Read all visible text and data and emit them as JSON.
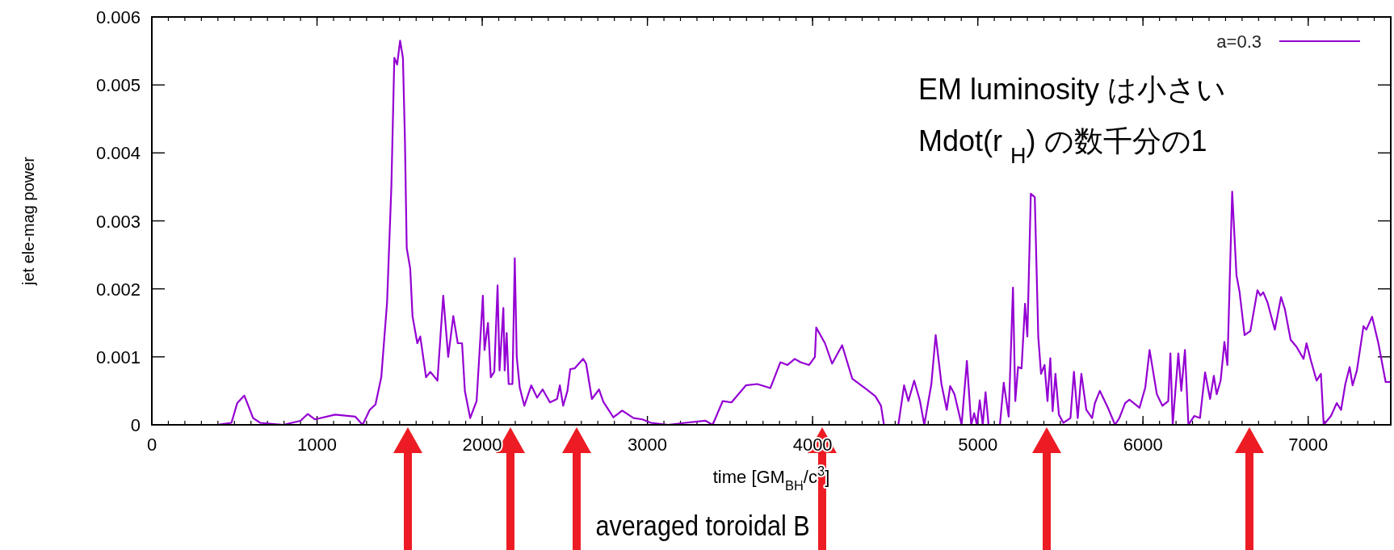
{
  "chart_data": {
    "type": "line",
    "xlabel": "time [GM$_{BH}$/c$^{3}$]",
    "ylabel": "jet ele-mag power",
    "annotations": [
      "EM luminosity は小さい",
      "Mdot(r $_{H}$) の数千分の1",
      "averaged toroidal B"
    ],
    "xlim": [
      0,
      7500
    ],
    "xticks": [
      0,
      1000,
      2000,
      3000,
      4000,
      5000,
      6000,
      7000
    ],
    "ylim": [
      0,
      0.006
    ],
    "yticks": [
      0,
      0.001,
      0.002,
      0.003,
      0.004,
      0.005,
      0.006
    ],
    "legend": "top right",
    "grid": false,
    "series": [
      {
        "name": "a=0.3",
        "color": "#9400d3",
        "x": [
          394,
          482,
          517,
          560,
          613,
          656,
          796,
          900,
          944,
          988,
          1110,
          1232,
          1276,
          1319,
          1354,
          1389,
          1424,
          1450,
          1468,
          1485,
          1503,
          1520,
          1532,
          1543,
          1564,
          1578,
          1607,
          1625,
          1660,
          1686,
          1729,
          1764,
          1794,
          1825,
          1852,
          1878,
          1895,
          1927,
          1966,
          2004,
          2014,
          2035,
          2052,
          2073,
          2093,
          2105,
          2128,
          2136,
          2148,
          2160,
          2183,
          2197,
          2209,
          2227,
          2255,
          2297,
          2332,
          2366,
          2410,
          2453,
          2470,
          2490,
          2516,
          2533,
          2559,
          2611,
          2629,
          2664,
          2707,
          2733,
          2794,
          2847,
          2916,
          2969,
          3021,
          3125,
          3230,
          3352,
          3395,
          3456,
          3509,
          3596,
          3665,
          3744,
          3805,
          3848,
          3892,
          3927,
          3979,
          4014,
          4022,
          4075,
          4118,
          4179,
          4240,
          4327,
          4380,
          4414,
          4432,
          4519,
          4554,
          4580,
          4615,
          4650,
          4676,
          4719,
          4745,
          4780,
          4812,
          4833,
          4859,
          4902,
          4934,
          4960,
          4978,
          4995,
          5012,
          5030,
          5047,
          5065,
          5134,
          5157,
          5187,
          5213,
          5227,
          5244,
          5265,
          5286,
          5300,
          5321,
          5345,
          5366,
          5383,
          5404,
          5422,
          5439,
          5453,
          5470,
          5491,
          5518,
          5561,
          5582,
          5605,
          5627,
          5657,
          5692,
          5709,
          5739,
          5788,
          5831,
          5857,
          5892,
          5918,
          5979,
          6014,
          6040,
          6084,
          6118,
          6153,
          6166,
          6180,
          6214,
          6232,
          6254,
          6275,
          6310,
          6345,
          6376,
          6406,
          6429,
          6446,
          6470,
          6493,
          6511,
          6540,
          6566,
          6585,
          6615,
          6650,
          6693,
          6711,
          6728,
          6754,
          6798,
          6836,
          6859,
          6894,
          6929,
          6972,
          6990,
          7016,
          7051,
          7077,
          7094,
          7138,
          7173,
          7199,
          7225,
          7251,
          7269,
          7295,
          7335,
          7352,
          7387,
          7425,
          7469,
          7498
        ],
        "values": [
          0,
          3e-05,
          0.00032,
          0.00043,
          0.0001,
          3e-05,
          0,
          6e-05,
          0.00016,
          8e-05,
          0.00015,
          0.00012,
          0,
          0.00022,
          0.0003,
          0.0007,
          0.0018,
          0.0035,
          0.0054,
          0.0053,
          0.00565,
          0.0054,
          0.0042,
          0.0026,
          0.0023,
          0.0016,
          0.0012,
          0.0013,
          0.0007,
          0.00078,
          0.00065,
          0.0019,
          0.001,
          0.0016,
          0.0012,
          0.0012,
          0.0005,
          0.0001,
          0.00035,
          0.0019,
          0.0011,
          0.0015,
          0.0007,
          0.00078,
          0.00205,
          0.0008,
          0.00172,
          0.0008,
          0.00135,
          0.0006,
          0.0006,
          0.00245,
          0.001,
          0.00055,
          0.00028,
          0.00058,
          0.0004,
          0.00052,
          0.00033,
          0.00038,
          0.00058,
          0.00028,
          0.0005,
          0.00082,
          0.00083,
          0.00097,
          0.0009,
          0.00038,
          0.00052,
          0.00034,
          0.00011,
          0.00021,
          0.0001,
          8e-05,
          3e-05,
          0,
          3e-05,
          6e-05,
          0,
          0.00035,
          0.00033,
          0.00058,
          0.0006,
          0.00054,
          0.00092,
          0.00088,
          0.00097,
          0.00092,
          0.00088,
          0.001,
          0.00143,
          0.0012,
          0.0009,
          0.00117,
          0.00068,
          0.00052,
          0.00042,
          0.00028,
          0,
          0,
          0.00058,
          0.00035,
          0.00065,
          0.00035,
          0,
          0.0006,
          0.00132,
          0.0006,
          0.00022,
          0.00057,
          0.00045,
          0,
          0.00094,
          0,
          0.00017,
          0,
          0.00036,
          0,
          0.00048,
          0,
          0,
          0.00062,
          0.00012,
          0.00202,
          0.00035,
          0.00085,
          0.00083,
          0.00178,
          0.0013,
          0.0034,
          0.00335,
          0.0013,
          0.00075,
          0.00088,
          0.00035,
          0.00098,
          0.0002,
          0.00075,
          0.00015,
          3e-05,
          0.0001,
          0.00078,
          0.0001,
          0.00075,
          0.00022,
          0.0001,
          0.00032,
          0.0005,
          0.00025,
          0,
          0.0001,
          0.00032,
          0.00037,
          0.00025,
          0.00055,
          0.0011,
          0.00045,
          0.00028,
          0.00035,
          0.00105,
          0,
          0.00105,
          0.0005,
          0.0011,
          0,
          0.00013,
          0.0001,
          0.00077,
          0.00038,
          0.00072,
          0.00045,
          0.00065,
          0.00122,
          0.00088,
          0.00343,
          0.0022,
          0.00195,
          0.00132,
          0.00138,
          0.00198,
          0.0019,
          0.00195,
          0.0018,
          0.0014,
          0.00188,
          0.0017,
          0.00125,
          0.00115,
          0.00097,
          0.0012,
          0.00095,
          0.00065,
          0.00075,
          0,
          0.00013,
          0.00032,
          0.00022,
          0.0006,
          0.00085,
          0.00058,
          0.0008,
          0.00145,
          0.0014,
          0.00159,
          0.0012,
          0.00063,
          0.00063
        ]
      }
    ]
  }
}
